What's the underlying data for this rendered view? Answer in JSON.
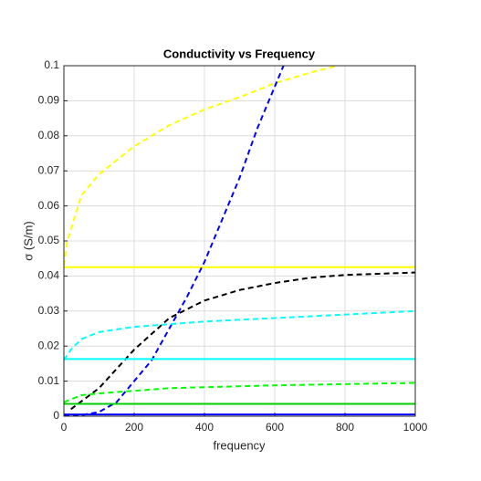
{
  "chart_data": {
    "type": "line",
    "title": "Conductivity vs Frequency",
    "xlabel": "frequency",
    "ylabel": "σ (S/m)",
    "xlim": [
      0,
      1000
    ],
    "xticks": [
      0,
      200,
      400,
      600,
      800,
      1000
    ],
    "ylim": [
      0,
      0.1
    ],
    "yticks": [
      0,
      0.01,
      0.02,
      0.03,
      0.04,
      0.05,
      0.06,
      0.07,
      0.08,
      0.09,
      0.1
    ],
    "grid": true,
    "series": [
      {
        "color": "#ffff00",
        "dashed": false,
        "x": [
          0,
          1000
        ],
        "values": [
          0.0425,
          0.0425
        ]
      },
      {
        "color": "#ffff00",
        "dashed": true,
        "x": [
          0,
          10,
          50,
          100,
          200,
          300,
          400,
          500,
          600,
          700,
          780
        ],
        "values": [
          0.043,
          0.05,
          0.063,
          0.069,
          0.077,
          0.083,
          0.0875,
          0.091,
          0.095,
          0.098,
          0.1
        ]
      },
      {
        "color": "#0000ff",
        "dashed": true,
        "x": [
          0,
          50,
          100,
          150,
          200,
          250,
          300,
          350,
          400,
          450,
          500,
          550,
          600,
          625
        ],
        "values": [
          0,
          0.0003,
          0.0012,
          0.004,
          0.01,
          0.016,
          0.025,
          0.034,
          0.044,
          0.056,
          0.068,
          0.082,
          0.094,
          0.1
        ]
      },
      {
        "color": "#000000",
        "dashed": true,
        "x": [
          20,
          100,
          200,
          300,
          400,
          500,
          600,
          700,
          800,
          1000
        ],
        "values": [
          0.002,
          0.008,
          0.019,
          0.028,
          0.033,
          0.036,
          0.038,
          0.0395,
          0.0403,
          0.041
        ]
      },
      {
        "color": "#00ffff",
        "dashed": false,
        "x": [
          0,
          1000
        ],
        "values": [
          0.0163,
          0.0163
        ]
      },
      {
        "color": "#00ffff",
        "dashed": true,
        "x": [
          0,
          20,
          50,
          100,
          200,
          400,
          600,
          800,
          1000
        ],
        "values": [
          0.016,
          0.019,
          0.022,
          0.024,
          0.0255,
          0.027,
          0.028,
          0.029,
          0.03
        ]
      },
      {
        "color": "#00cc00",
        "dashed": false,
        "x": [
          0,
          1000
        ],
        "values": [
          0.0035,
          0.0035
        ]
      },
      {
        "color": "#00ff00",
        "dashed": true,
        "x": [
          0,
          50,
          100,
          300,
          600,
          1000
        ],
        "values": [
          0.004,
          0.006,
          0.0065,
          0.008,
          0.0088,
          0.0095
        ]
      },
      {
        "color": "#0000ff",
        "dashed": false,
        "x": [
          0,
          1000
        ],
        "values": [
          0.0005,
          0.0005
        ]
      }
    ]
  }
}
